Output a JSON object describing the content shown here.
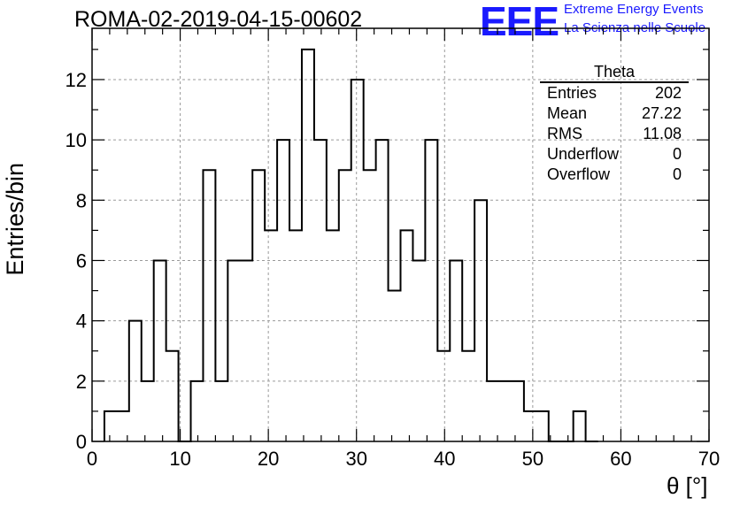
{
  "title": "ROMA-02-2019-04-15-00602",
  "logo": {
    "mark": "EEE",
    "line1": "Extreme Energy Events",
    "line2": "La Scienza nelle Scuole",
    "color": "#1a1aff"
  },
  "stats": {
    "title": "Theta",
    "rows": [
      {
        "label": "Entries",
        "value": "202"
      },
      {
        "label": "Mean",
        "value": "27.22"
      },
      {
        "label": "RMS",
        "value": "11.08"
      },
      {
        "label": "Underflow",
        "value": "0"
      },
      {
        "label": "Overflow",
        "value": "0"
      }
    ]
  },
  "chart_data": {
    "type": "bar",
    "style": "step-histogram",
    "xlabel": "θ [°]",
    "ylabel": "Entries/bin",
    "xlim": [
      0,
      70
    ],
    "ylim": [
      0,
      13.7
    ],
    "grid": true,
    "x_ticks": [
      0,
      10,
      20,
      30,
      40,
      50,
      60,
      70
    ],
    "y_ticks": [
      0,
      2,
      4,
      6,
      8,
      10,
      12
    ],
    "bin_width": 1.4,
    "bins_start": 1.4,
    "values": [
      1,
      1,
      4,
      2,
      6,
      3,
      0,
      2,
      9,
      2,
      6,
      6,
      9,
      7,
      10,
      7,
      13,
      10,
      7,
      9,
      12,
      9,
      10,
      5,
      7,
      6,
      10,
      3,
      6,
      3,
      8,
      2,
      2,
      2,
      1,
      1,
      0,
      0,
      1,
      0
    ]
  }
}
